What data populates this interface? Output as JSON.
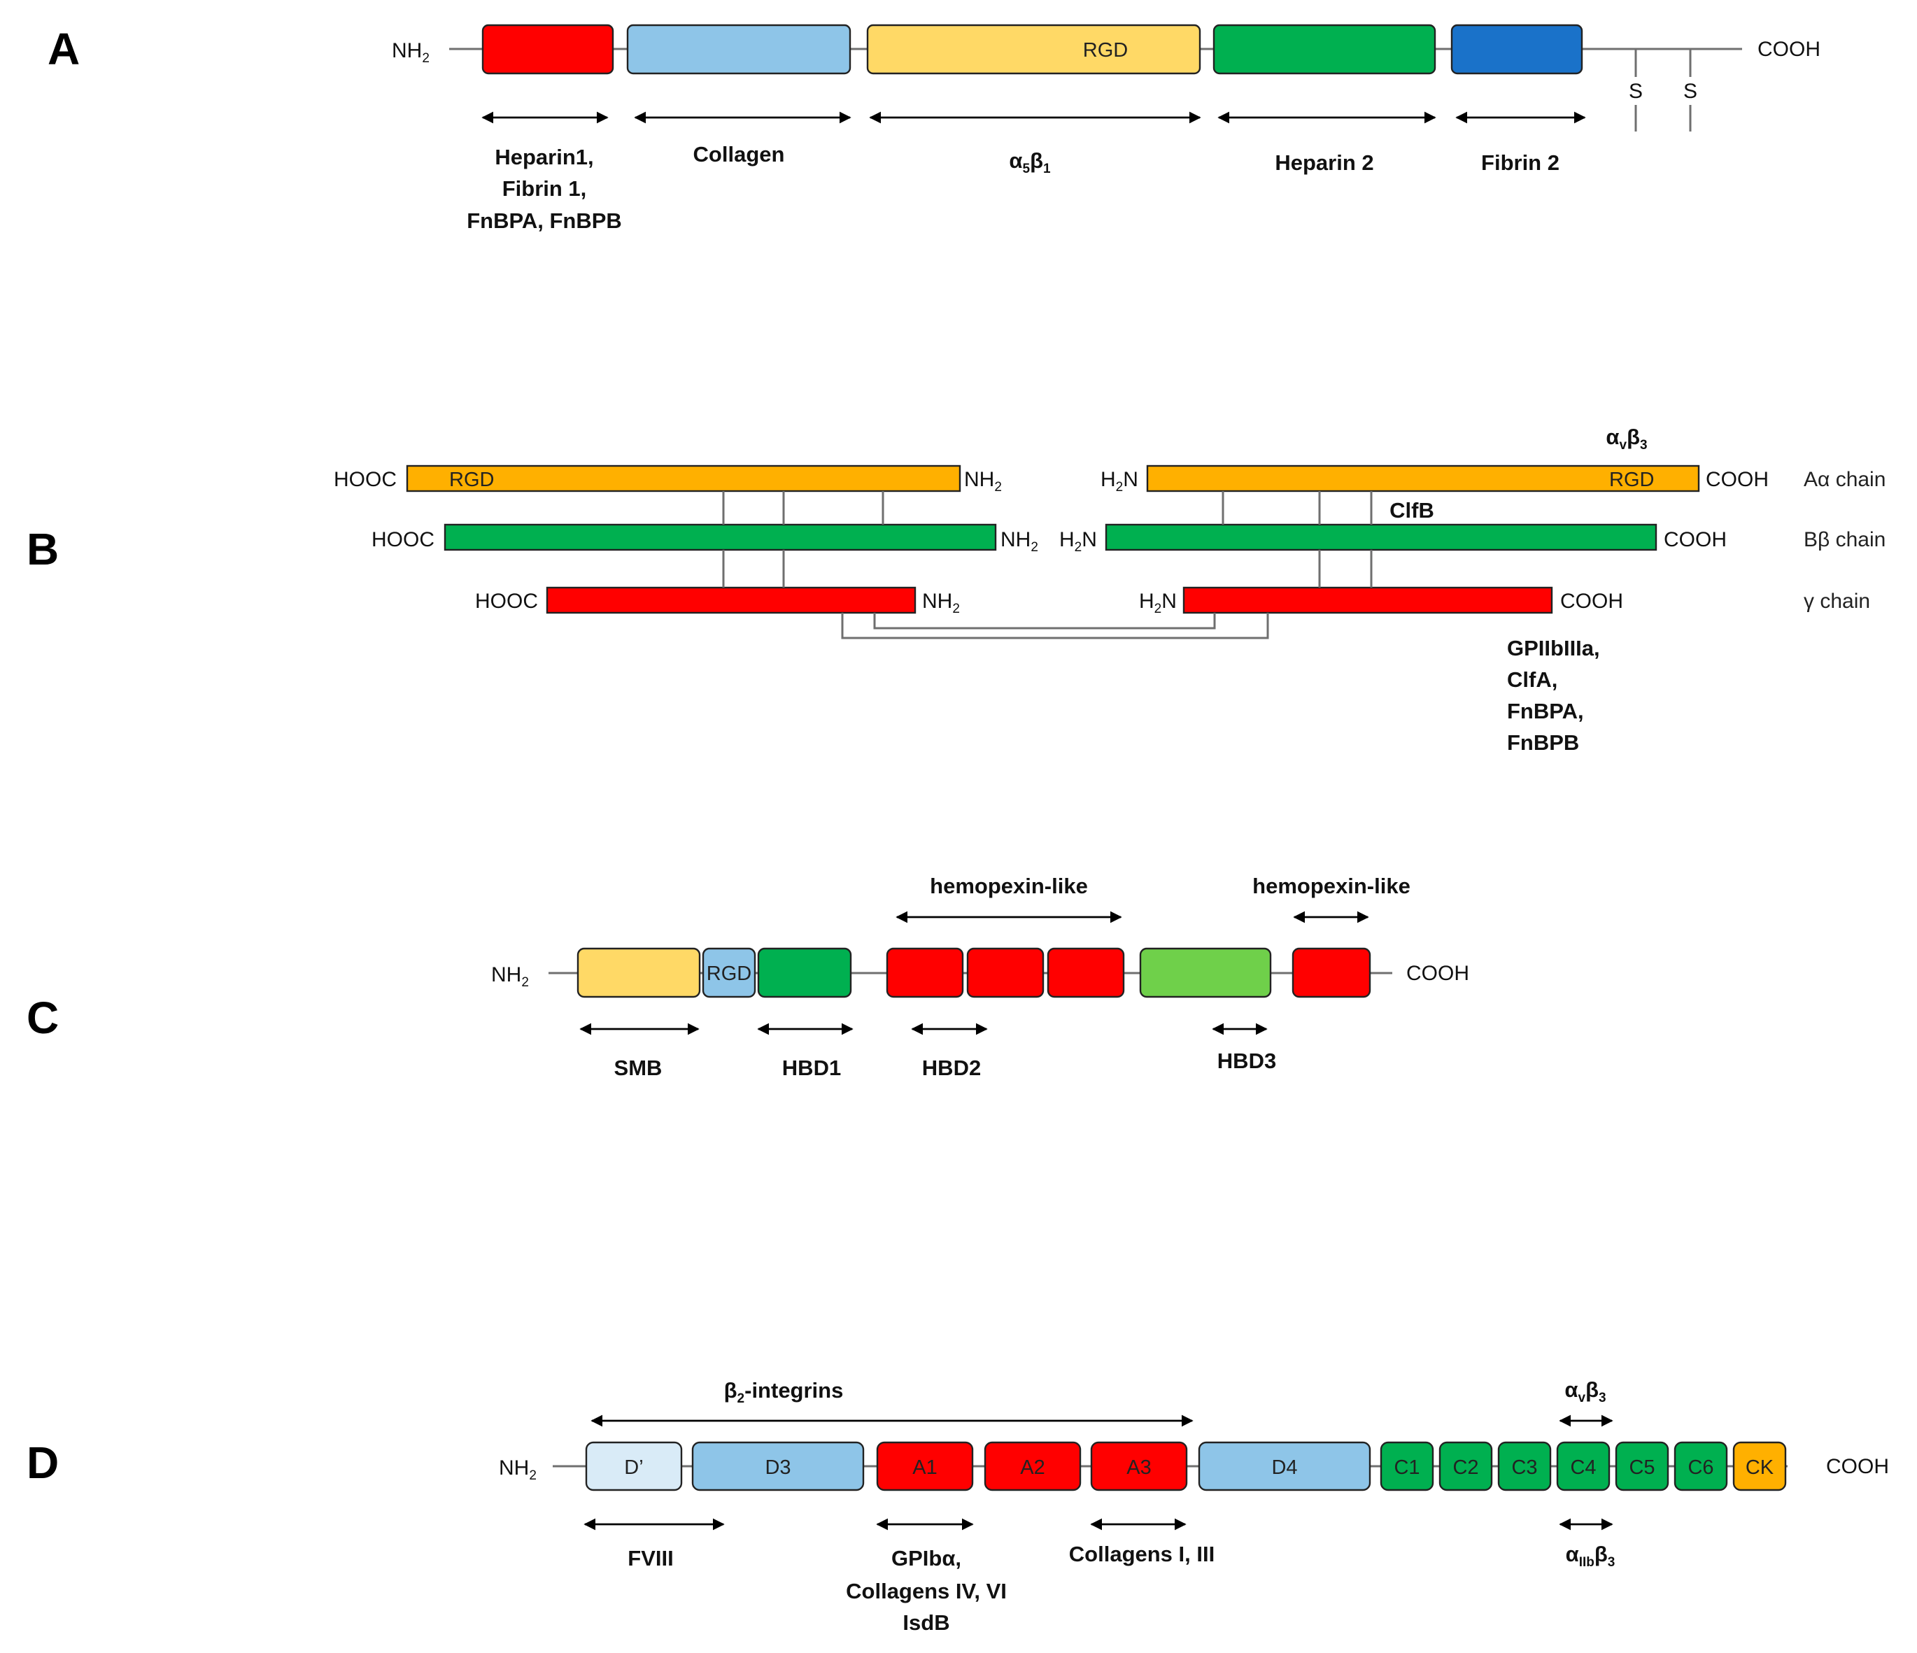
{
  "colors": {
    "red": "#ff0000",
    "light_blue": "#8ec5e8",
    "yellow": "#ffd966",
    "green": "#00b050",
    "blue": "#1a72c9",
    "orange": "#ffb000",
    "light_green": "#6fd04a",
    "pale_blue": "#d9ebf7"
  },
  "panels": [
    "A",
    "B",
    "C",
    "D"
  ],
  "panel_a": {
    "nh2": "NH",
    "nh2_sub": "2",
    "cooh": "COOH",
    "domain_rgd": "RGD",
    "s1": "S",
    "s2": "S",
    "lbl_heparin1": [
      "Heparin1,",
      "Fibrin 1,",
      "FnBPA, FnBPB"
    ],
    "lbl_collagen": "Collagen",
    "lbl_integrin_alpha": "α",
    "lbl_integrin_alpha_sub": "5",
    "lbl_integrin_beta": "β",
    "lbl_integrin_beta_sub": "1",
    "lbl_heparin2": "Heparin 2",
    "lbl_fibrin2": "Fibrin 2"
  },
  "panel_b": {
    "left_hooc": [
      "HOOC",
      "HOOC",
      "HOOC"
    ],
    "left_nh2": "NH",
    "nh2_sub": "2",
    "right_h2n_h": "H",
    "right_h2n_sub": "2",
    "right_h2n_n": "N",
    "right_cooh": "COOH",
    "rgd_left": "RGD",
    "rgd_right": "RGD",
    "chains": [
      "Aα chain",
      "Bβ chain",
      "γ chain"
    ],
    "integrin_alpha": "α",
    "integrin_alpha_sub": "v",
    "integrin_beta": "β",
    "integrin_beta_sub": "3",
    "clfb": "ClfB",
    "gamma_binders": [
      "GPIIbIIIa,",
      "ClfA,",
      "FnBPA,",
      "FnBPB"
    ]
  },
  "panel_c": {
    "nh2": "NH",
    "nh2_sub": "2",
    "cooh": "COOH",
    "domain_rgd": "RGD",
    "hemopexin1": "hemopexin-like",
    "hemopexin2": "hemopexin-like",
    "smb": "SMB",
    "hbd1": "HBD1",
    "hbd2": "HBD2",
    "hbd3": "HBD3"
  },
  "panel_d": {
    "nh2": "NH",
    "nh2_sub": "2",
    "cooh": "COOH",
    "domains": [
      "D’",
      "D3",
      "A1",
      "A2",
      "A3",
      "D4",
      "C1",
      "C2",
      "C3",
      "C4",
      "C5",
      "C6",
      "CK"
    ],
    "beta2_b": "β",
    "beta2_sub": "2",
    "beta2_rest": "-integrins",
    "av_alpha": "α",
    "av_sub": "v",
    "av_beta": "β",
    "av_beta_sub": "3",
    "aiib_alpha": "α",
    "aiib_sub": "IIb",
    "aiib_beta": "β",
    "aiib_beta_sub": "3",
    "fviii": "FVIII",
    "gpib": [
      "GPIbα,",
      "Collagens IV, VI",
      "IsdB"
    ],
    "collagens13": "Collagens I, III"
  }
}
